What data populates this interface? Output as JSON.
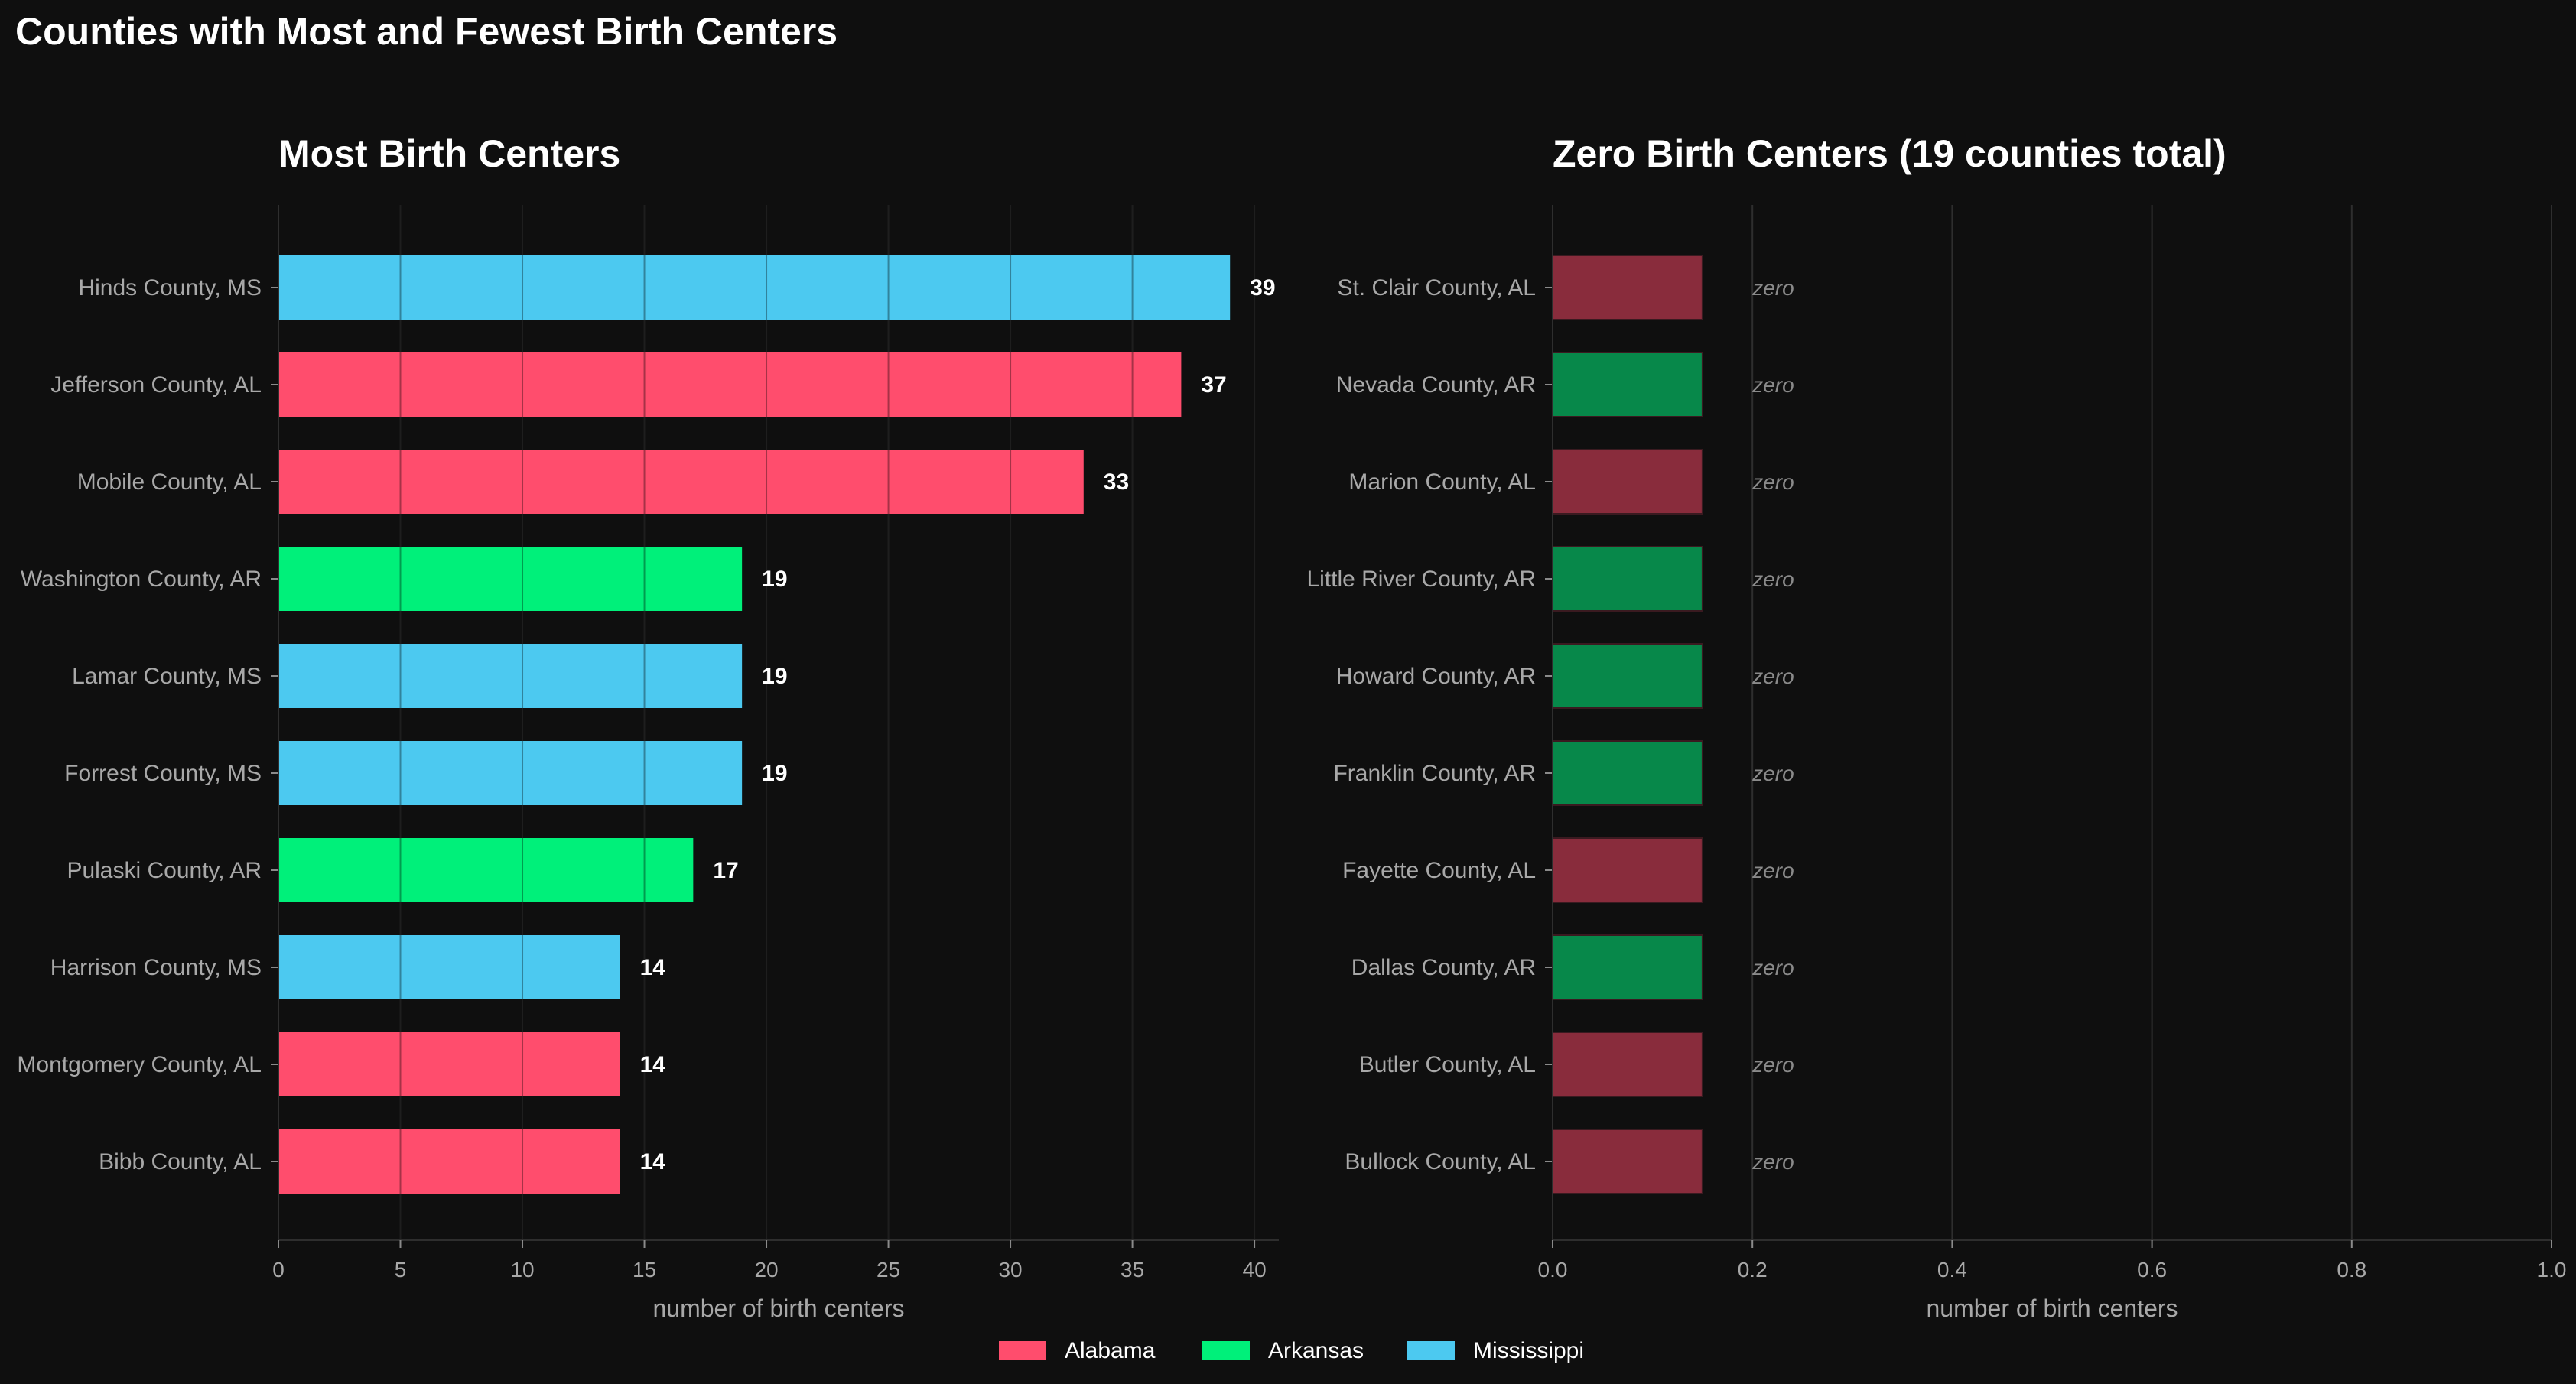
{
  "title": "Counties with Most and Fewest Birth Centers",
  "colors": {
    "background": "#0f0f0f",
    "Alabama": "#ff4d6d",
    "Arkansas": "#00f07a",
    "Mississippi": "#4cc9f0",
    "Alabama_zero": "#892c3c",
    "Arkansas_zero": "#07884a",
    "grid": "#2e2e2e"
  },
  "legend": {
    "placement": "bottom-center",
    "items": [
      {
        "name": "Alabama",
        "color": "#ff4d6d"
      },
      {
        "name": "Arkansas",
        "color": "#00f07a"
      },
      {
        "name": "Mississippi",
        "color": "#4cc9f0"
      }
    ]
  },
  "chart_data": [
    {
      "type": "bar",
      "orientation": "horizontal",
      "title": "Most Birth Centers",
      "xlabel": "number of birth centers",
      "ylabel": "",
      "xlim": [
        0,
        41
      ],
      "xticks": [
        0,
        5,
        10,
        15,
        20,
        25,
        30,
        35,
        40
      ],
      "grid": true,
      "categories": [
        "Hinds County, MS",
        "Jefferson County, AL",
        "Mobile County, AL",
        "Washington County, AR",
        "Lamar County, MS",
        "Forrest County, MS",
        "Pulaski County, AR",
        "Harrison County, MS",
        "Montgomery County, AL",
        "Bibb County, AL"
      ],
      "values": [
        39,
        37,
        33,
        19,
        19,
        19,
        17,
        14,
        14,
        14
      ],
      "states": [
        "Mississippi",
        "Alabama",
        "Alabama",
        "Arkansas",
        "Mississippi",
        "Mississippi",
        "Arkansas",
        "Mississippi",
        "Alabama",
        "Alabama"
      ],
      "data_labels": [
        "39",
        "37",
        "33",
        "19",
        "19",
        "19",
        "17",
        "14",
        "14",
        "14"
      ]
    },
    {
      "type": "bar",
      "orientation": "horizontal",
      "title": "Zero Birth Centers (19 counties total)",
      "xlabel": "number of birth centers",
      "ylabel": "",
      "xlim": [
        0,
        1.0
      ],
      "xticks": [
        0.0,
        0.2,
        0.4,
        0.6,
        0.8,
        1.0
      ],
      "grid": true,
      "categories": [
        "St. Clair County, AL",
        "Nevada County, AR",
        "Marion County, AL",
        "Little River County, AR",
        "Howard County, AR",
        "Franklin County, AR",
        "Fayette County, AL",
        "Dallas County, AR",
        "Butler County, AL",
        "Bullock County, AL"
      ],
      "values": [
        0,
        0,
        0,
        0,
        0,
        0,
        0,
        0,
        0,
        0
      ],
      "display_bar_value": 0.15,
      "states": [
        "Alabama",
        "Arkansas",
        "Alabama",
        "Arkansas",
        "Arkansas",
        "Arkansas",
        "Alabama",
        "Arkansas",
        "Alabama",
        "Alabama"
      ],
      "data_labels": [
        "zero",
        "zero",
        "zero",
        "zero",
        "zero",
        "zero",
        "zero",
        "zero",
        "zero",
        "zero"
      ]
    }
  ]
}
